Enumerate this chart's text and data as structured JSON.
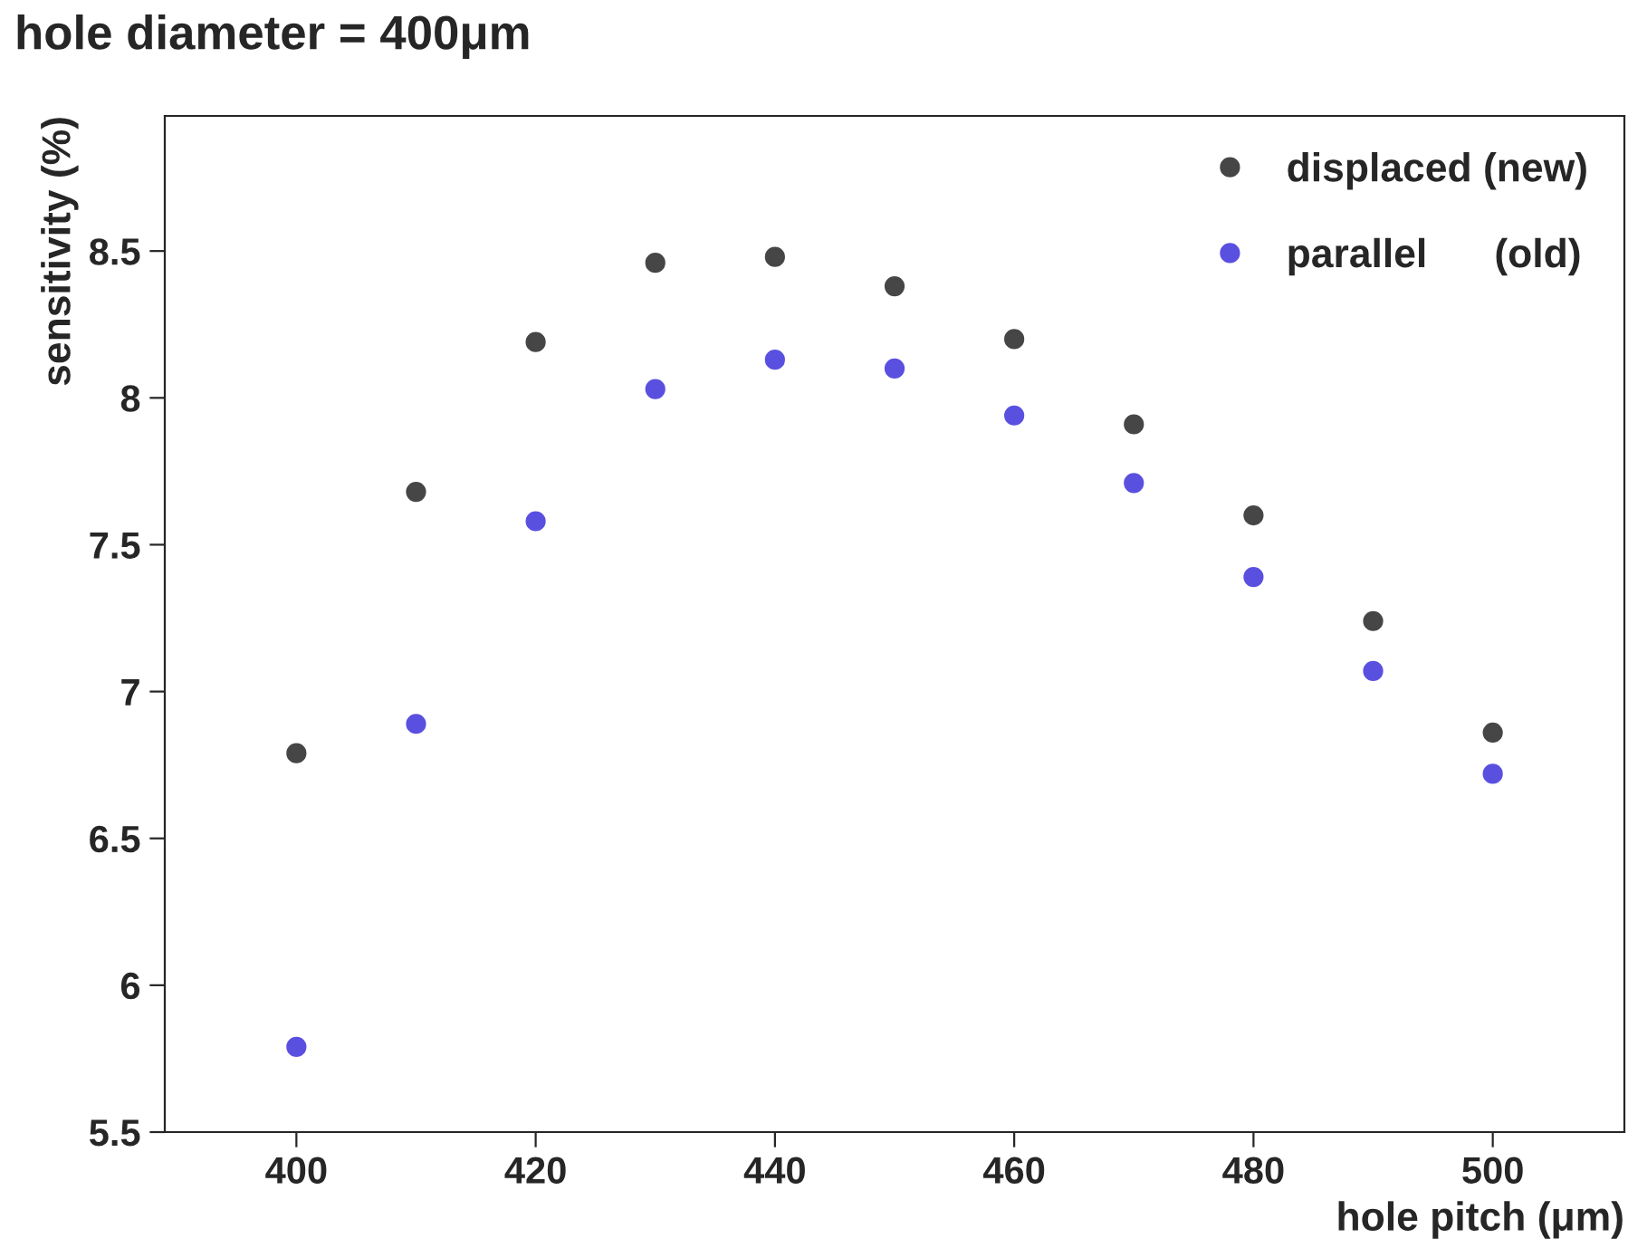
{
  "chart_data": {
    "type": "scatter",
    "title": "hole diameter = 400μm",
    "xlabel": "hole pitch (μm)",
    "ylabel": "sensitivity (%)",
    "x": [
      400,
      410,
      420,
      430,
      440,
      450,
      460,
      470,
      480,
      490,
      500
    ],
    "series": [
      {
        "name": "displaced (new)",
        "color": "#464646",
        "values": [
          6.79,
          7.68,
          8.19,
          8.46,
          8.48,
          8.38,
          8.2,
          7.91,
          7.6,
          7.24,
          6.86
        ]
      },
      {
        "name": "parallel      (old)",
        "color": "#5a50e0",
        "values": [
          5.79,
          6.89,
          7.58,
          8.03,
          8.13,
          8.1,
          7.94,
          7.71,
          7.39,
          7.07,
          6.72
        ]
      }
    ],
    "xlim": [
      389,
      511
    ],
    "ylim": [
      5.5,
      8.96
    ],
    "xticks": [
      400,
      420,
      440,
      460,
      480,
      500
    ],
    "yticks": [
      5.5,
      6,
      6.5,
      7,
      7.5,
      8,
      8.5
    ],
    "marker": "circle",
    "legend": "top right",
    "grid": false
  }
}
